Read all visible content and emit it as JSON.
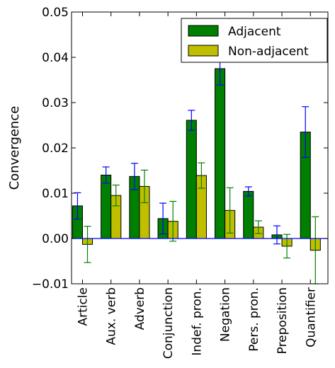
{
  "chart_data": {
    "type": "bar",
    "title": "",
    "xlabel": "",
    "ylabel": "Convergence",
    "ylim": [
      -0.01,
      0.05
    ],
    "yticks": [
      "−0.01",
      "0.00",
      "0.01",
      "0.02",
      "0.03",
      "0.04",
      "0.05"
    ],
    "ytick_values": [
      -0.01,
      0.0,
      0.01,
      0.02,
      0.03,
      0.04,
      0.05
    ],
    "categories": [
      "Article",
      "Aux. verb",
      "Adverb",
      "Conjunction",
      "Indef. pron.",
      "Negation",
      "Pers. pron.",
      "Preposition",
      "Quantifier"
    ],
    "legend_position": "top-right",
    "grid": false,
    "zero_line_color": "#0000ff",
    "series": [
      {
        "name": "Adjacent",
        "color": "#008000",
        "error_color": "#0000ff",
        "values": [
          0.0072,
          0.014,
          0.0137,
          0.0044,
          0.0261,
          0.0375,
          0.0104,
          0.0008,
          0.0235
        ],
        "errors": [
          0.0029,
          0.0018,
          0.0029,
          0.0034,
          0.0022,
          0.0036,
          0.001,
          0.002,
          0.0056
        ]
      },
      {
        "name": "Non-adjacent",
        "color": "#bfbf00",
        "error_color": "#008000",
        "values": [
          -0.0013,
          0.0095,
          0.0115,
          0.0038,
          0.0139,
          0.0062,
          0.0025,
          -0.0017,
          -0.0026
        ],
        "errors": [
          0.004,
          0.0023,
          0.0036,
          0.0044,
          0.0028,
          0.005,
          0.0014,
          0.0026,
          0.0074
        ]
      }
    ]
  }
}
